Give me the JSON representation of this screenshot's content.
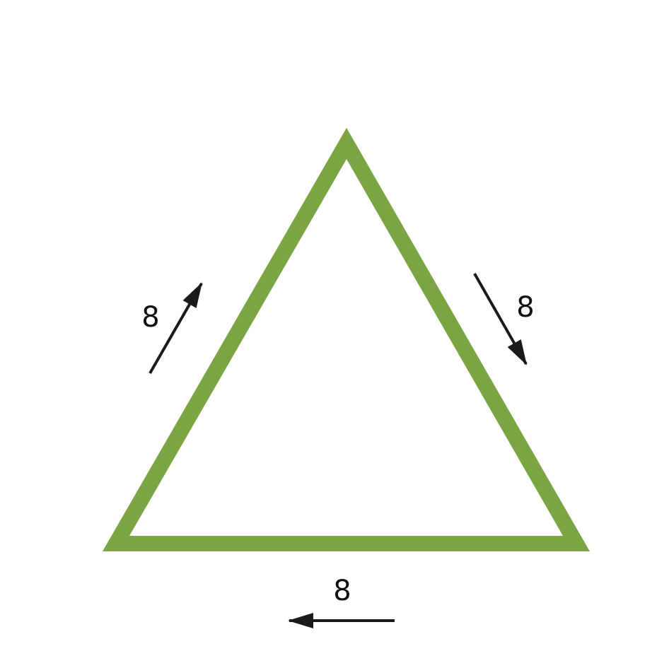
{
  "diagram": {
    "shape": "equilateral-triangle",
    "colors": {
      "triangle_stroke": "#7aa542",
      "arrow": "#1a1a1a",
      "label": "#111111",
      "background": "#ffffff"
    },
    "sides": [
      {
        "id": "left",
        "label": "8",
        "arrow_direction": "up-right"
      },
      {
        "id": "right",
        "label": "8",
        "arrow_direction": "down-right"
      },
      {
        "id": "bottom",
        "label": "8",
        "arrow_direction": "left"
      }
    ]
  }
}
